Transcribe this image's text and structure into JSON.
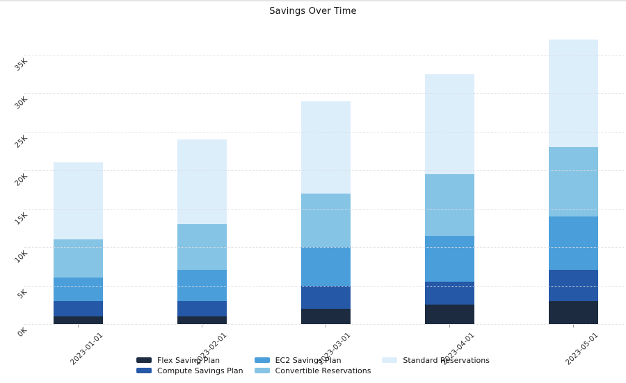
{
  "page": {
    "background": "#ffffff",
    "top_border_color": "#e4e4e4"
  },
  "chart_data": {
    "type": "bar",
    "stacked": true,
    "title": "Savings Over Time",
    "title_color": "#111111",
    "categories": [
      "2023-01-01",
      "2023-02-01",
      "2023-03-01",
      "2023-04-01",
      "2023-05-01"
    ],
    "series": [
      {
        "name": "Flex Saving Plan",
        "color": "#1c2b3f",
        "values": [
          1000,
          1000,
          2000,
          2500,
          3000
        ]
      },
      {
        "name": "Compute Savings Plan",
        "color": "#2558a6",
        "values": [
          2000,
          2000,
          3000,
          3000,
          4000
        ]
      },
      {
        "name": "EC2 Savings Plan",
        "color": "#4a9eda",
        "values": [
          3000,
          4000,
          5000,
          6000,
          7000
        ]
      },
      {
        "name": "Convertible Reservations",
        "color": "#85c4e4",
        "values": [
          5000,
          6000,
          7000,
          8000,
          9000
        ]
      },
      {
        "name": "Standard Reservations",
        "color": "#ddeefb",
        "values": [
          10000,
          11000,
          12000,
          13000,
          14000
        ]
      }
    ],
    "stack_totals": [
      21000,
      24000,
      29000,
      32500,
      37000
    ],
    "yticks": [
      "0K",
      "5K",
      "10K",
      "15K",
      "20K",
      "25K",
      "30K",
      "35K"
    ],
    "ytick_values": [
      0,
      5000,
      10000,
      15000,
      20000,
      25000,
      30000,
      35000
    ],
    "ylim": [
      0,
      37000
    ],
    "xlabel": "",
    "ylabel": "",
    "grid": "horizontal-dotted",
    "gridline_color": "#dcdce2",
    "tick_label_color": "#2b2b2b",
    "legend_position": "bottom",
    "legend_columns": [
      [
        0,
        1
      ],
      [
        2,
        3
      ],
      [
        4
      ]
    ]
  }
}
